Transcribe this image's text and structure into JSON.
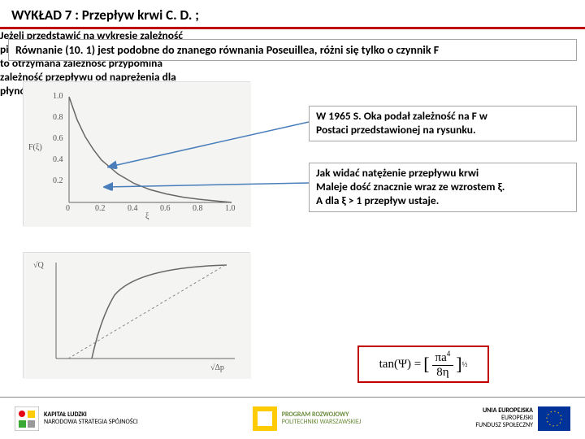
{
  "header": {
    "title": "WYKŁAD 7 : Przepływ krwi C. D. ;"
  },
  "intro": "Równanie (10. 1) jest podobne do znanego równania Poseuillea, różni się tylko o  czynnik F",
  "box1": {
    "l1": "W 1965 S. Oka podał zależność na F w",
    "l2": "Postaci przedstawionej na rysunku."
  },
  "box2": {
    "l1": "Jak widać natężenie przepływu krwi",
    "l2": "Maleje dość znacznie wraz ze wzrostem ξ.",
    "l3": "A dla ξ > 1 przepływ ustaje."
  },
  "box3": {
    "l1": "Jeżeli przedstawić na wykresie zależność",
    "l2": "pierwiastka z Q od pierwiastka ze spadku ciśnienia",
    "l3": "to  otrzymana zależność przypomina",
    "l4": "zależność przepływu od naprężenia dla",
    "l5": "płynów plastycznych Binghama"
  },
  "graph1": {
    "yticks": [
      "1.0",
      "0.8",
      "0.6",
      "0.4",
      "0.2",
      "0"
    ],
    "xticks": [
      "0",
      "0.2",
      "0.4",
      "0.6",
      "0.8",
      "1.0"
    ],
    "ylabel": "F(ξ)",
    "xlabel": "ξ",
    "curve_color": "#666666",
    "bg": "#f4f4f2",
    "points": [
      [
        0,
        1.0
      ],
      [
        0.05,
        0.78
      ],
      [
        0.1,
        0.62
      ],
      [
        0.15,
        0.5
      ],
      [
        0.2,
        0.4
      ],
      [
        0.3,
        0.27
      ],
      [
        0.4,
        0.18
      ],
      [
        0.5,
        0.12
      ],
      [
        0.6,
        0.08
      ],
      [
        0.7,
        0.05
      ],
      [
        0.8,
        0.03
      ],
      [
        0.9,
        0.015
      ],
      [
        1.0,
        0
      ]
    ]
  },
  "graph2": {
    "ylabel": "√Q",
    "xlabel": "√Δp",
    "curve_color": "#666666",
    "line_color": "#888888",
    "bg": "#f4f4f2"
  },
  "formula": {
    "lhs": "tan(Ψ) =",
    "num": "πa",
    "num_sup": "4",
    "den": "8η",
    "outer_exp": "½"
  },
  "arrows": {
    "color": "#4a7ebb"
  },
  "footer": {
    "left": {
      "t1": "KAPITAŁ LUDZKI",
      "t2": "NARODOWA STRATEGIA SPÓJNOŚCI"
    },
    "mid": {
      "t1": "PROGRAM ROZWOJOWY",
      "t2": "POLITECHNIKI WARSZAWSKIEJ"
    },
    "right": {
      "t1": "UNIA EUROPEJSKA",
      "t2": "EUROPEJSKI",
      "t3": "FUNDUSZ SPOŁECZNY"
    }
  }
}
